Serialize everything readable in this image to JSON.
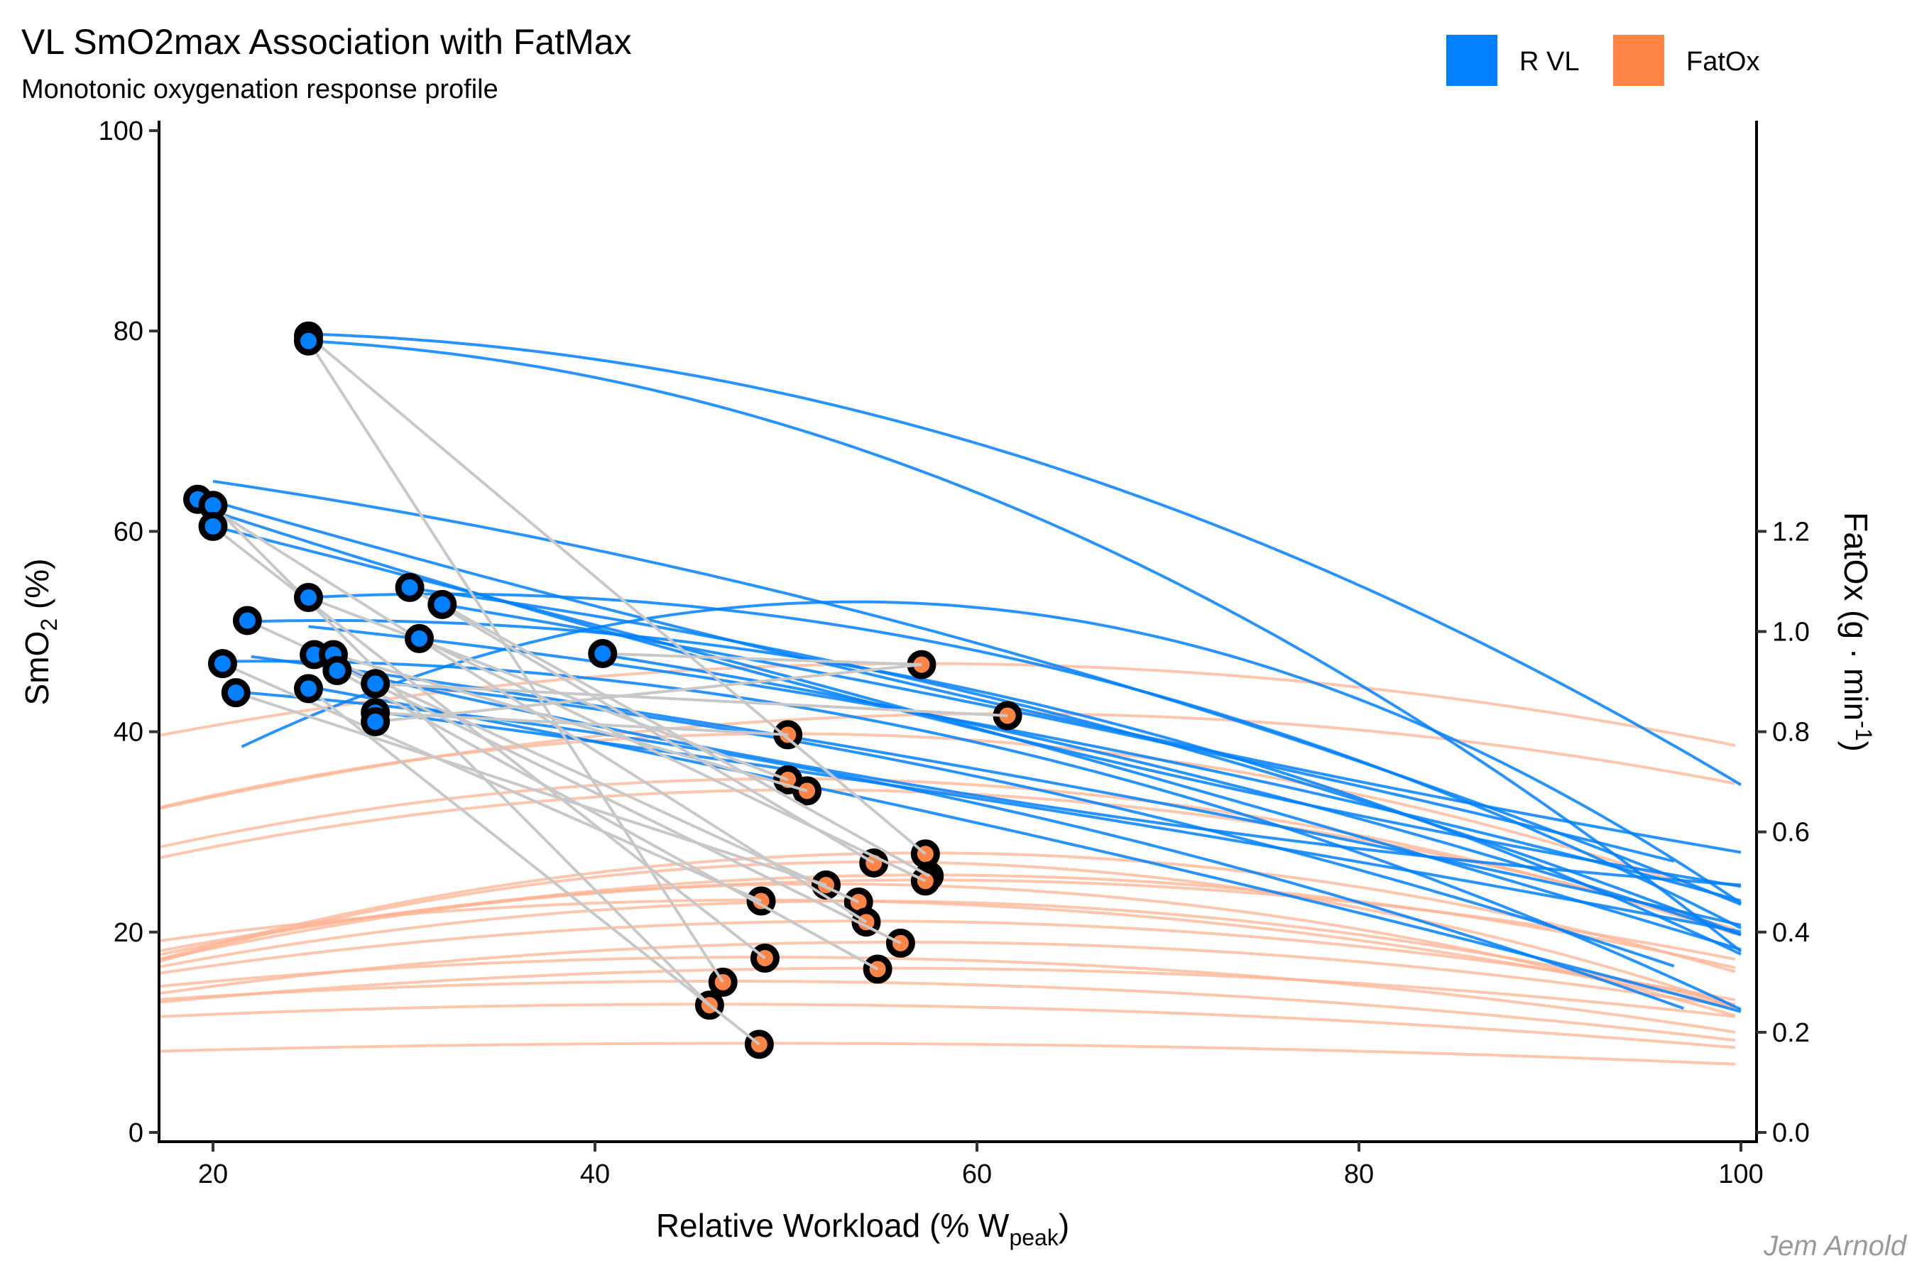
{
  "chart_data": {
    "type": "scatter",
    "title": "VL SmO2max Association with FatMax",
    "subtitle": "Monotonic oxygenation response profile",
    "caption": "Jem Arnold",
    "xlabel": "Relative Workload (% W",
    "xlabel_sub": "peak",
    "xlabel_end": ")",
    "ylabel": "SmO",
    "ylabel_sub": "2",
    "ylabel_end": " (%)",
    "y2label": "FatOx (g · min",
    "y2label_sup": "-1",
    "y2label_end": ")",
    "xlim": [
      17.2,
      100.8
    ],
    "ylim": [
      -1,
      101
    ],
    "y2lim": [
      -0.02,
      2.02
    ],
    "y2_scale_factor": 50,
    "x_ticks": [
      20,
      40,
      60,
      80,
      100
    ],
    "y_ticks": [
      0,
      20,
      40,
      60,
      80,
      100
    ],
    "y2_ticks": [
      "0.0",
      "0.2",
      "0.4",
      "0.6",
      "0.8",
      "1.0",
      "1.2"
    ],
    "y2_tick_values": [
      0.0,
      0.2,
      0.4,
      0.6,
      0.8,
      1.0,
      1.2
    ],
    "grid": false,
    "legend_position": "top-right",
    "legend": [
      {
        "label": "R VL",
        "color": "#0080FF"
      },
      {
        "label": "FatOx",
        "color": "#FF8547"
      }
    ],
    "colors": {
      "smo2": "#0080FF",
      "fatox": "#FF8547",
      "fatox_curve": "#FFB393",
      "connector": "#C8C8C8",
      "point_stroke": "#000000"
    },
    "series": [
      {
        "name": "R VL",
        "description": "SmO2max points (x = workload, y = SmO2 %)",
        "points": [
          [
            25.0,
            79.5
          ],
          [
            25.0,
            79.0
          ],
          [
            19.2,
            63.2
          ],
          [
            20.0,
            62.6
          ],
          [
            20.0,
            60.5
          ],
          [
            25.0,
            53.4
          ],
          [
            21.8,
            51.1
          ],
          [
            30.3,
            54.4
          ],
          [
            32.0,
            52.7
          ],
          [
            30.8,
            49.3
          ],
          [
            20.5,
            46.8
          ],
          [
            25.3,
            47.7
          ],
          [
            26.3,
            47.7
          ],
          [
            26.5,
            46.1
          ],
          [
            40.4,
            47.8
          ],
          [
            21.2,
            43.9
          ],
          [
            25.0,
            44.3
          ],
          [
            28.5,
            44.8
          ],
          [
            28.5,
            41.9
          ],
          [
            28.5,
            41.0
          ]
        ]
      },
      {
        "name": "FatOx",
        "description": "FatMax points (x = workload, y = FatOx g/min)",
        "points": [
          [
            57.1,
            0.934
          ],
          [
            61.6,
            0.832
          ],
          [
            50.1,
            0.794
          ],
          [
            50.1,
            0.704
          ],
          [
            51.1,
            0.682
          ],
          [
            54.6,
            0.538
          ],
          [
            57.3,
            0.556
          ],
          [
            57.5,
            0.512
          ],
          [
            57.3,
            0.502
          ],
          [
            52.1,
            0.494
          ],
          [
            53.8,
            0.46
          ],
          [
            48.7,
            0.462
          ],
          [
            54.2,
            0.42
          ],
          [
            56.0,
            0.378
          ],
          [
            48.9,
            0.348
          ],
          [
            54.8,
            0.326
          ],
          [
            46.7,
            0.3
          ],
          [
            46.0,
            0.254
          ],
          [
            48.6,
            0.176
          ]
        ]
      }
    ],
    "connectors": [
      [
        0,
        6
      ],
      [
        1,
        16
      ],
      [
        2,
        12
      ],
      [
        3,
        17
      ],
      [
        4,
        14
      ],
      [
        5,
        3
      ],
      [
        6,
        10
      ],
      [
        7,
        5
      ],
      [
        8,
        7
      ],
      [
        9,
        8
      ],
      [
        10,
        11
      ],
      [
        11,
        13
      ],
      [
        12,
        4
      ],
      [
        13,
        15
      ],
      [
        14,
        0
      ],
      [
        15,
        9
      ],
      [
        16,
        18
      ],
      [
        17,
        1
      ],
      [
        18,
        2
      ],
      [
        19,
        0
      ]
    ],
    "smo2_curves": [
      {
        "x0": 25.0,
        "x1": 100,
        "y0": 79.7,
        "c": [
          79.7,
          -0.06,
          -0.0072
        ]
      },
      {
        "x0": 25.0,
        "x1": 100,
        "y0": 79.0,
        "c": [
          79.0,
          -0.1,
          -0.0095
        ]
      },
      {
        "x0": 20.0,
        "x1": 100,
        "y0": 65.0,
        "c": [
          65.0,
          -0.28,
          -0.0031
        ]
      },
      {
        "x0": 20.0,
        "x1": 100,
        "y0": 63.0,
        "c": [
          63.0,
          -0.55,
          0.0014
        ]
      },
      {
        "x0": 20.0,
        "x1": 100,
        "y0": 62.0,
        "c": [
          62.0,
          -0.62,
          0.0019
        ]
      },
      {
        "x0": 20.0,
        "x1": 100,
        "y0": 60.5,
        "c": [
          60.5,
          -0.48,
          -0.0006
        ]
      },
      {
        "x0": 25.0,
        "x1": 100,
        "y0": 53.4,
        "c": [
          53.4,
          0.1,
          -0.0072
        ]
      },
      {
        "x0": 22.0,
        "x1": 100,
        "y0": 51.0,
        "c": [
          51.0,
          0.05,
          -0.0061
        ]
      },
      {
        "x0": 30.0,
        "x1": 100,
        "y0": 54.4,
        "c": [
          54.4,
          -0.25,
          -0.0035
        ]
      },
      {
        "x0": 32.0,
        "x1": 96.5,
        "y0": 52.7,
        "c": [
          52.7,
          -0.32,
          -0.0012
        ]
      },
      {
        "x0": 25.0,
        "x1": 100,
        "y0": 50.5,
        "c": [
          50.5,
          -0.2,
          -0.0022
        ]
      },
      {
        "x0": 20.0,
        "x1": 100,
        "y0": 47.0,
        "c": [
          47.0,
          0.03,
          -0.0058
        ]
      },
      {
        "x0": 22.0,
        "x1": 100,
        "y0": 47.5,
        "c": [
          47.5,
          -0.25,
          -0.0012
        ]
      },
      {
        "x0": 26.0,
        "x1": 100,
        "y0": 46.5,
        "c": [
          46.5,
          -0.45,
          0.0021
        ]
      },
      {
        "x0": 40.0,
        "x1": 100,
        "y0": 47.8,
        "c": [
          47.8,
          -0.3,
          -0.0028
        ]
      },
      {
        "x0": 21.0,
        "x1": 97,
        "y0": 44.0,
        "c": [
          44.0,
          -0.15,
          -0.0035
        ]
      },
      {
        "x0": 25.0,
        "x1": 100,
        "y0": 44.5,
        "c": [
          44.5,
          -0.35,
          -0.0011
        ]
      },
      {
        "x0": 28.5,
        "x1": 96.5,
        "y0": 45.0,
        "c": [
          45.0,
          -0.2,
          -0.0032
        ]
      },
      {
        "x0": 28.5,
        "x1": 100,
        "y0": 42.0,
        "c": [
          42.0,
          -0.25,
          -0.0008
        ]
      },
      {
        "x0": 21.5,
        "x1": 100,
        "y0": 38.5,
        "c": [
          38.5,
          0.9,
          -0.014
        ]
      }
    ],
    "fatox_curves": [
      {
        "x0": 17.2,
        "x1": 100,
        "peak_x": 57.1,
        "peak_y": 46.8,
        "k": 0.0045
      },
      {
        "x0": 17.2,
        "x1": 100,
        "peak_x": 61.6,
        "peak_y": 41.8,
        "k": 0.0048
      },
      {
        "x0": 17.2,
        "x1": 100,
        "peak_x": 50.1,
        "peak_y": 39.8,
        "k": 0.0068
      },
      {
        "x0": 17.2,
        "x1": 100,
        "peak_x": 50.1,
        "peak_y": 35.3,
        "k": 0.0063
      },
      {
        "x0": 17.2,
        "x1": 100,
        "peak_x": 51.1,
        "peak_y": 34.2,
        "k": 0.0059
      },
      {
        "x0": 17.2,
        "x1": 100,
        "peak_x": 54.6,
        "peak_y": 27.0,
        "k": 0.0071
      },
      {
        "x0": 17.2,
        "x1": 100,
        "peak_x": 57.3,
        "peak_y": 27.9,
        "k": 0.0066
      },
      {
        "x0": 17.2,
        "x1": 100,
        "peak_x": 57.5,
        "peak_y": 25.7,
        "k": 0.0052
      },
      {
        "x0": 17.2,
        "x1": 100,
        "peak_x": 57.3,
        "peak_y": 25.2,
        "k": 0.0044
      },
      {
        "x0": 17.2,
        "x1": 100,
        "peak_x": 52.1,
        "peak_y": 24.8,
        "k": 0.0058
      },
      {
        "x0": 17.2,
        "x1": 100,
        "peak_x": 53.8,
        "peak_y": 23.1,
        "k": 0.0049
      },
      {
        "x0": 17.2,
        "x1": 100,
        "peak_x": 48.7,
        "peak_y": 23.2,
        "k": 0.0041
      },
      {
        "x0": 17.2,
        "x1": 100,
        "peak_x": 54.2,
        "peak_y": 21.1,
        "k": 0.0038
      },
      {
        "x0": 17.2,
        "x1": 100,
        "peak_x": 56.0,
        "peak_y": 19.0,
        "k": 0.0034
      },
      {
        "x0": 17.2,
        "x1": 100,
        "peak_x": 48.9,
        "peak_y": 17.5,
        "k": 0.0029
      },
      {
        "x0": 17.2,
        "x1": 100,
        "peak_x": 54.8,
        "peak_y": 16.4,
        "k": 0.0024
      },
      {
        "x0": 17.2,
        "x1": 100,
        "peak_x": 46.7,
        "peak_y": 15.1,
        "k": 0.0021
      },
      {
        "x0": 17.2,
        "x1": 100,
        "peak_x": 46.0,
        "peak_y": 12.8,
        "k": 0.0015
      },
      {
        "x0": 17.2,
        "x1": 100,
        "peak_x": 48.6,
        "peak_y": 8.9,
        "k": 0.0008
      }
    ]
  }
}
